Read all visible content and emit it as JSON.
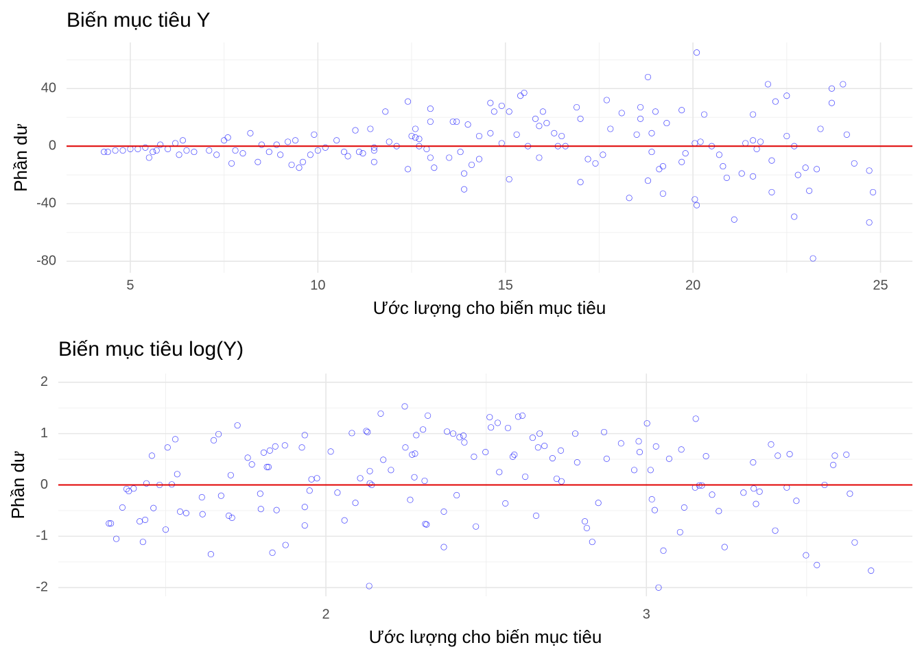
{
  "chart_data": [
    {
      "type": "scatter",
      "title": "Biến mục tiêu Y",
      "xlabel": "Ước lượng cho biến mục tiêu",
      "ylabel": "Phần dư",
      "x": [
        4.3,
        4.4,
        4.6,
        4.8,
        5.0,
        5.2,
        5.4,
        5.5,
        5.6,
        5.7,
        5.8,
        6.0,
        6.2,
        6.3,
        6.4,
        6.5,
        6.7,
        7.1,
        7.3,
        7.5,
        7.6,
        7.7,
        7.8,
        8.0,
        8.2,
        8.4,
        8.5,
        8.7,
        8.9,
        9.0,
        9.2,
        9.3,
        9.4,
        9.5,
        9.6,
        9.8,
        9.9,
        10.0,
        10.2,
        10.5,
        10.7,
        10.8,
        11.0,
        11.1,
        11.2,
        11.4,
        11.5,
        11.5,
        11.5,
        11.8,
        11.9,
        12.1,
        12.4,
        12.4,
        12.5,
        12.6,
        12.6,
        12.7,
        12.7,
        12.9,
        13.0,
        13.0,
        13.0,
        13.1,
        13.5,
        13.6,
        13.7,
        13.8,
        13.9,
        13.9,
        14.0,
        14.1,
        14.3,
        14.3,
        14.6,
        14.6,
        14.7,
        14.9,
        14.9,
        15.1,
        15.1,
        15.3,
        15.4,
        15.5,
        15.6,
        15.8,
        15.9,
        16.0,
        15.9,
        16.1,
        16.3,
        16.4,
        16.5,
        16.6,
        16.9,
        17.0,
        17.0,
        17.2,
        17.4,
        17.6,
        17.7,
        17.8,
        18.1,
        18.3,
        18.5,
        18.6,
        18.6,
        18.8,
        18.8,
        18.9,
        18.9,
        19.0,
        19.1,
        19.2,
        19.2,
        19.3,
        19.7,
        19.7,
        19.8,
        20.05,
        20.1,
        20.1,
        20.05,
        20.2,
        20.3,
        20.5,
        20.7,
        20.8,
        20.9,
        21.1,
        21.3,
        21.4,
        21.6,
        21.6,
        21.6,
        21.7,
        21.8,
        22.0,
        22.1,
        22.1,
        22.2,
        22.5,
        22.5,
        22.7,
        22.7,
        22.8,
        23.0,
        23.1,
        23.2,
        23.3,
        23.4,
        23.7,
        23.7,
        24.0,
        24.1,
        24.3,
        24.7,
        24.7,
        24.8
      ],
      "values": [
        -4,
        -4,
        -3,
        -3,
        -2,
        -2,
        -1,
        -8,
        -4,
        -3,
        1,
        -2,
        2,
        -6,
        4,
        -3,
        -4,
        -3,
        -6,
        4,
        6,
        -12,
        -3,
        -5,
        9,
        -11,
        1,
        -4,
        1,
        -6,
        3,
        -13,
        4,
        -15,
        -11,
        -6,
        8,
        -3,
        -1,
        4,
        -4,
        -7,
        11,
        -4,
        -5,
        12,
        -11,
        -1,
        -3,
        24,
        3,
        0,
        31,
        -16,
        7,
        6,
        12,
        0,
        5,
        -2,
        17,
        -8,
        26,
        -15,
        -8,
        17,
        17,
        -4,
        -19,
        -30,
        15,
        -13,
        7,
        -9,
        9,
        30,
        24,
        28,
        2,
        24,
        -23,
        8,
        35,
        37,
        0,
        19,
        -8,
        24,
        14,
        16,
        9,
        0,
        7,
        0,
        27,
        19,
        -25,
        -9,
        -12,
        -6,
        32,
        12,
        23,
        -36,
        8,
        27,
        19,
        -24,
        48,
        9,
        -4,
        24,
        -16,
        -14,
        -33,
        16,
        -11,
        25,
        -5,
        -37,
        -41,
        65,
        2,
        3,
        22,
        0,
        -6,
        -14,
        -22,
        -51,
        -19,
        2,
        -21,
        22,
        4,
        -2,
        3,
        43,
        -10,
        -32,
        31,
        7,
        35,
        0,
        -49,
        -20,
        -15,
        -31,
        -78,
        -16,
        12,
        30,
        40,
        43,
        8,
        -12,
        -17,
        -53,
        -32
      ],
      "color": "#0000ff",
      "xlim": [
        3.3,
        25.85
      ],
      "ylim": [
        -88,
        72
      ],
      "xticks": [
        5,
        10,
        15,
        20,
        25
      ],
      "yticks": [
        -80,
        -40,
        0,
        40
      ],
      "minor_xticks": [
        7.5,
        12.5,
        17.5,
        22.5
      ],
      "minor_yticks": [
        -60,
        -20,
        20,
        60
      ],
      "grid": true,
      "hline": 0,
      "hline_color": "#e00000"
    },
    {
      "type": "scatter",
      "title": "Biến mục tiêu log(Y)",
      "xlabel": "Ước lượng cho biến mục tiêu",
      "ylabel": "Phần dư",
      "x": [
        1.323,
        1.329,
        1.346,
        1.365,
        1.378,
        1.385,
        1.4,
        1.419,
        1.429,
        1.436,
        1.44,
        1.457,
        1.462,
        1.481,
        1.5,
        1.506,
        1.519,
        1.53,
        1.536,
        1.545,
        1.564,
        1.613,
        1.615,
        1.641,
        1.65,
        1.665,
        1.673,
        1.697,
        1.703,
        1.707,
        1.724,
        1.756,
        1.769,
        1.795,
        1.797,
        1.806,
        1.816,
        1.821,
        1.825,
        1.833,
        1.842,
        1.846,
        1.872,
        1.874,
        1.925,
        1.934,
        1.934,
        1.934,
        1.949,
        1.955,
        1.972,
        2.015,
        2.036,
        2.058,
        2.081,
        2.092,
        2.107,
        2.126,
        2.13,
        2.137,
        2.137,
        2.143,
        2.135,
        2.171,
        2.179,
        2.203,
        2.246,
        2.248,
        2.263,
        2.269,
        2.276,
        2.278,
        2.282,
        2.303,
        2.308,
        2.31,
        2.314,
        2.318,
        2.368,
        2.368,
        2.378,
        2.397,
        2.408,
        2.417,
        2.429,
        2.432,
        2.462,
        2.468,
        2.498,
        2.511,
        2.515,
        2.536,
        2.541,
        2.56,
        2.568,
        2.583,
        2.588,
        2.6,
        2.613,
        2.622,
        2.645,
        2.656,
        2.662,
        2.667,
        2.682,
        2.707,
        2.72,
        2.733,
        2.735,
        2.778,
        2.784,
        2.808,
        2.814,
        2.831,
        2.85,
        2.868,
        2.876,
        2.921,
        2.962,
        2.976,
        2.979,
        3.002,
        3.013,
        3.017,
        3.026,
        3.03,
        3.038,
        3.053,
        3.071,
        3.105,
        3.109,
        3.118,
        3.152,
        3.154,
        3.165,
        3.173,
        3.186,
        3.205,
        3.226,
        3.244,
        3.303,
        3.333,
        3.335,
        3.342,
        3.353,
        3.389,
        3.402,
        3.41,
        3.438,
        3.447,
        3.468,
        3.498,
        3.532,
        3.556,
        3.583,
        3.588,
        3.624,
        3.635,
        3.65,
        3.701
      ],
      "values": [
        -0.75,
        -0.75,
        -1.05,
        -0.44,
        -0.08,
        -0.12,
        -0.07,
        -0.71,
        -1.11,
        -0.68,
        0.03,
        0.57,
        -0.45,
        0,
        -0.87,
        0.73,
        0.01,
        0.89,
        0.21,
        -0.52,
        -0.55,
        -0.24,
        -0.57,
        -1.35,
        0.87,
        0.99,
        -0.21,
        -0.6,
        0.19,
        -0.64,
        1.16,
        0.53,
        0.4,
        -0.17,
        -0.47,
        0.63,
        0.35,
        0.35,
        0.67,
        -1.32,
        0.75,
        -0.49,
        0.77,
        -1.17,
        0.73,
        0.97,
        -0.43,
        -0.79,
        -0.11,
        0.11,
        0.13,
        0.65,
        -0.15,
        -0.69,
        1.01,
        -0.35,
        0.13,
        1.05,
        1.03,
        0.27,
        0.03,
        0,
        -1.97,
        1.39,
        0.49,
        0.29,
        1.53,
        0.73,
        -0.29,
        0.59,
        0.15,
        0.61,
        0.97,
        1.08,
        0.08,
        -0.76,
        -0.77,
        1.35,
        -0.52,
        -1.21,
        1.04,
        1,
        -0.2,
        0.93,
        0.96,
        0.83,
        0.55,
        -0.81,
        0.64,
        1.32,
        1.12,
        1.21,
        0.25,
        -0.36,
        1.11,
        0.55,
        0.59,
        1.33,
        1.35,
        0.16,
        0.92,
        -0.6,
        0.73,
        1,
        0.76,
        0.52,
        0.12,
        0.67,
        0.07,
        1,
        0.44,
        -0.71,
        -0.84,
        -1.11,
        -0.35,
        1.03,
        0.51,
        0.81,
        0.29,
        0.85,
        0.64,
        1.2,
        0.29,
        -0.28,
        -0.49,
        0.75,
        -2,
        -1.28,
        0.51,
        -0.92,
        0.69,
        -0.44,
        -0.05,
        1.29,
        -0.01,
        -0.01,
        0.56,
        -0.19,
        -0.51,
        -1.21,
        -0.15,
        0.44,
        -0.07,
        -0.37,
        -0.13,
        0.79,
        -0.89,
        0.57,
        -0.05,
        0.6,
        -0.31,
        -1.37,
        -1.56,
        0,
        0.39,
        0.57,
        0.59,
        -0.17,
        -1.12,
        -1.67
      ],
      "color": "#0000ff",
      "xlim": [
        1.165,
        3.83
      ],
      "ylim": [
        -2.17,
        2.17
      ],
      "xticks": [
        2,
        3
      ],
      "yticks": [
        -2,
        -1,
        0,
        1,
        2
      ],
      "minor_xticks": [
        1.5,
        2.5,
        3.5
      ],
      "minor_yticks": [
        -1.5,
        -0.5,
        0.5,
        1.5
      ],
      "grid": true,
      "hline": 0,
      "hline_color": "#e00000"
    }
  ]
}
